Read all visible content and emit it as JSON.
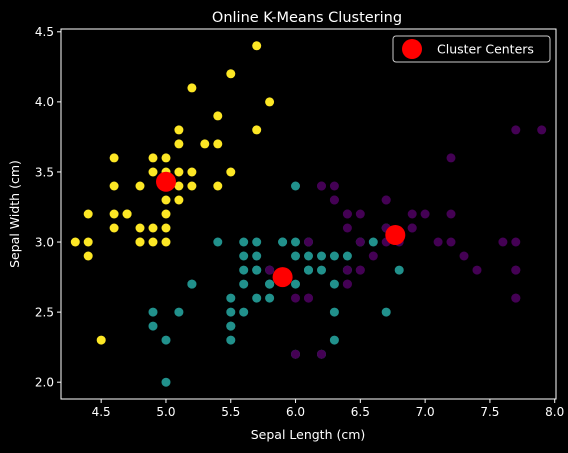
{
  "chart_data": {
    "type": "scatter",
    "title": "Online K-Means Clustering",
    "xlabel": "Sepal Length (cm)",
    "ylabel": "Sepal Width (cm)",
    "xlim": [
      4.19,
      8.01
    ],
    "ylim": [
      1.88,
      4.52
    ],
    "xticks": [
      4.5,
      5.0,
      5.5,
      6.0,
      6.5,
      7.0,
      7.5,
      8.0
    ],
    "xtick_labels": [
      "4.5",
      "5.0",
      "5.5",
      "6.0",
      "6.5",
      "7.0",
      "7.5",
      "8.0"
    ],
    "yticks": [
      2.0,
      2.5,
      3.0,
      3.5,
      4.0,
      4.5
    ],
    "ytick_labels": [
      "2.0",
      "2.5",
      "3.0",
      "3.5",
      "4.0",
      "4.5"
    ],
    "grid": false,
    "legend": {
      "placement": "upper-right",
      "entries": [
        "Cluster Centers"
      ]
    },
    "colors": {
      "background": "#000000",
      "axes": "#ffffff",
      "cluster_yellow": "#fde725",
      "cluster_teal": "#21918c",
      "cluster_purple": "#440154",
      "centers": "#ff0000"
    },
    "series": [
      {
        "color_key": "cluster_yellow",
        "points": [
          [
            5.1,
            3.5
          ],
          [
            4.9,
            3.0
          ],
          [
            4.7,
            3.2
          ],
          [
            4.6,
            3.1
          ],
          [
            5.0,
            3.6
          ],
          [
            5.4,
            3.9
          ],
          [
            4.6,
            3.4
          ],
          [
            5.0,
            3.4
          ],
          [
            4.4,
            2.9
          ],
          [
            4.9,
            3.1
          ],
          [
            5.4,
            3.7
          ],
          [
            4.8,
            3.4
          ],
          [
            4.8,
            3.0
          ],
          [
            4.3,
            3.0
          ],
          [
            5.8,
            4.0
          ],
          [
            5.7,
            4.4
          ],
          [
            5.1,
            3.8
          ],
          [
            5.7,
            3.8
          ],
          [
            5.2,
            4.1
          ],
          [
            5.5,
            4.2
          ],
          [
            5.1,
            3.7
          ],
          [
            4.6,
            3.6
          ],
          [
            5.1,
            3.3
          ],
          [
            4.8,
            3.1
          ],
          [
            5.2,
            3.5
          ],
          [
            5.2,
            3.4
          ],
          [
            4.7,
            3.2
          ],
          [
            5.4,
            3.4
          ],
          [
            5.5,
            3.5
          ],
          [
            4.4,
            3.2
          ],
          [
            4.5,
            2.3
          ],
          [
            4.4,
            3.0
          ],
          [
            5.0,
            3.5
          ],
          [
            4.9,
            3.6
          ],
          [
            4.9,
            3.5
          ],
          [
            5.0,
            3.0
          ],
          [
            5.3,
            3.7
          ],
          [
            5.0,
            3.3
          ],
          [
            5.0,
            3.2
          ],
          [
            4.6,
            3.2
          ],
          [
            5.1,
            3.4
          ],
          [
            5.0,
            3.1
          ],
          [
            4.8,
            3.0
          ]
        ]
      },
      {
        "color_key": "cluster_teal",
        "points": [
          [
            5.5,
            2.3
          ],
          [
            5.7,
            2.8
          ],
          [
            4.9,
            2.4
          ],
          [
            5.2,
            2.7
          ],
          [
            5.0,
            2.0
          ],
          [
            5.9,
            3.0
          ],
          [
            6.0,
            2.2
          ],
          [
            5.6,
            2.9
          ],
          [
            5.8,
            2.7
          ],
          [
            6.2,
            2.2
          ],
          [
            5.6,
            2.5
          ],
          [
            6.1,
            2.8
          ],
          [
            6.3,
            2.5
          ],
          [
            6.1,
            2.8
          ],
          [
            6.4,
            2.9
          ],
          [
            6.0,
            2.9
          ],
          [
            5.7,
            2.6
          ],
          [
            5.5,
            2.4
          ],
          [
            5.5,
            2.4
          ],
          [
            5.8,
            2.7
          ],
          [
            6.0,
            2.7
          ],
          [
            5.4,
            3.0
          ],
          [
            6.0,
            3.4
          ],
          [
            6.3,
            2.3
          ],
          [
            5.6,
            3.0
          ],
          [
            5.5,
            2.5
          ],
          [
            5.5,
            2.6
          ],
          [
            6.1,
            3.0
          ],
          [
            5.8,
            2.6
          ],
          [
            5.0,
            2.3
          ],
          [
            5.6,
            2.7
          ],
          [
            5.7,
            3.0
          ],
          [
            5.7,
            2.9
          ],
          [
            6.2,
            2.9
          ],
          [
            5.1,
            2.5
          ],
          [
            5.7,
            2.8
          ],
          [
            4.9,
            2.5
          ],
          [
            6.5,
            3.0
          ],
          [
            5.8,
            2.8
          ],
          [
            5.6,
            2.8
          ],
          [
            6.3,
            2.7
          ],
          [
            6.2,
            2.8
          ],
          [
            6.6,
            3.0
          ],
          [
            6.8,
            2.8
          ],
          [
            6.0,
            3.0
          ],
          [
            5.9,
            3.0
          ],
          [
            5.8,
            2.7
          ],
          [
            6.4,
            2.8
          ],
          [
            6.3,
            2.9
          ],
          [
            5.2,
            2.7
          ],
          [
            6.1,
            2.9
          ],
          [
            6.7,
            3.1
          ],
          [
            6.7,
            2.5
          ]
        ]
      },
      {
        "color_key": "cluster_purple",
        "points": [
          [
            7.0,
            3.2
          ],
          [
            6.4,
            3.2
          ],
          [
            6.9,
            3.1
          ],
          [
            6.5,
            2.8
          ],
          [
            6.3,
            3.3
          ],
          [
            6.6,
            2.9
          ],
          [
            6.7,
            3.1
          ],
          [
            6.2,
            2.2
          ],
          [
            6.1,
            2.6
          ],
          [
            6.8,
            3.0
          ],
          [
            6.7,
            3.0
          ],
          [
            6.3,
            3.3
          ],
          [
            7.1,
            3.0
          ],
          [
            6.5,
            3.0
          ],
          [
            7.6,
            3.0
          ],
          [
            7.3,
            2.9
          ],
          [
            7.2,
            3.6
          ],
          [
            6.4,
            2.7
          ],
          [
            7.7,
            3.8
          ],
          [
            7.7,
            2.6
          ],
          [
            6.9,
            3.2
          ],
          [
            7.7,
            2.8
          ],
          [
            7.2,
            3.2
          ],
          [
            7.2,
            3.0
          ],
          [
            7.4,
            2.8
          ],
          [
            7.9,
            3.8
          ],
          [
            7.7,
            3.0
          ],
          [
            6.4,
            3.1
          ],
          [
            6.9,
            3.1
          ],
          [
            6.7,
            3.3
          ],
          [
            6.5,
            3.2
          ],
          [
            6.4,
            3.2
          ],
          [
            6.1,
            3.0
          ],
          [
            6.3,
            3.4
          ],
          [
            6.2,
            3.4
          ],
          [
            6.4,
            2.8
          ],
          [
            5.8,
            2.8
          ],
          [
            6.0,
            2.2
          ],
          [
            7.7,
            2.6
          ],
          [
            6.5,
            2.8
          ],
          [
            7.7,
            2.8
          ],
          [
            6.7,
            3.3
          ],
          [
            6.2,
            3.4
          ],
          [
            6.1,
            2.6
          ],
          [
            6.4,
            2.7
          ],
          [
            6.0,
            2.6
          ]
        ]
      }
    ],
    "centers": {
      "name": "Cluster Centers",
      "points": [
        [
          5.0,
          3.43
        ],
        [
          5.9,
          2.75
        ],
        [
          6.77,
          3.05
        ]
      ]
    }
  }
}
